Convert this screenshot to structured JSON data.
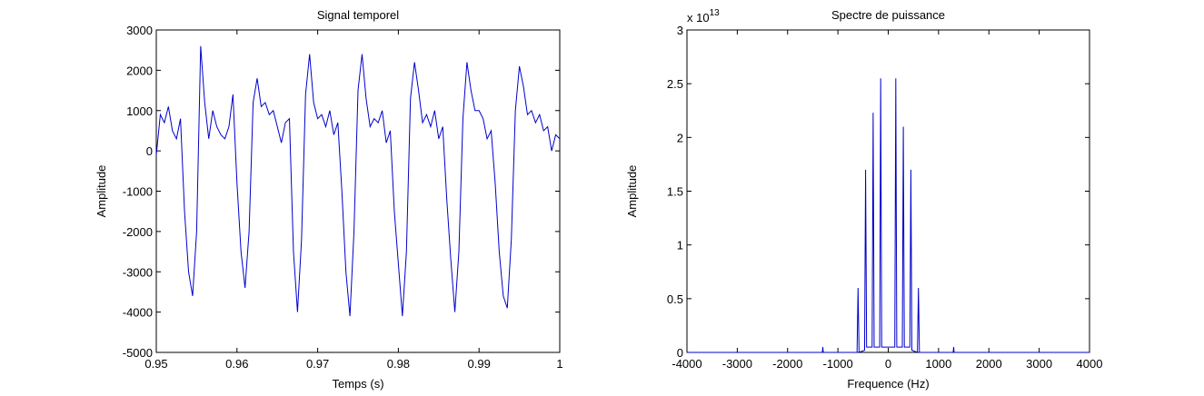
{
  "chart_data": [
    {
      "type": "line",
      "title": "Signal temporel",
      "x_label": "Temps (s)",
      "y_label": "Amplitude",
      "xlim": [
        0.95,
        1
      ],
      "xticks": [
        0.95,
        0.96,
        0.97,
        0.98,
        0.99,
        1
      ],
      "ylim": [
        -5000,
        3000
      ],
      "yticks": [
        -5000,
        -4000,
        -3000,
        -2000,
        -1000,
        0,
        1000,
        2000,
        3000
      ],
      "color": "#0000cc",
      "x": [
        0.95,
        0.9505,
        0.951,
        0.9515,
        0.952,
        0.9525,
        0.953,
        0.9535,
        0.954,
        0.9545,
        0.955,
        0.9555,
        0.956,
        0.9565,
        0.957,
        0.9575,
        0.958,
        0.9585,
        0.959,
        0.9595,
        0.96,
        0.9605,
        0.961,
        0.9615,
        0.962,
        0.9625,
        0.963,
        0.9635,
        0.964,
        0.9645,
        0.965,
        0.9655,
        0.966,
        0.9665,
        0.967,
        0.9675,
        0.968,
        0.9685,
        0.969,
        0.9695,
        0.97,
        0.9705,
        0.971,
        0.9715,
        0.972,
        0.9725,
        0.973,
        0.9735,
        0.974,
        0.9745,
        0.975,
        0.9755,
        0.976,
        0.9765,
        0.977,
        0.9775,
        0.978,
        0.9785,
        0.979,
        0.9795,
        0.98,
        0.9805,
        0.981,
        0.9815,
        0.982,
        0.9825,
        0.983,
        0.9835,
        0.984,
        0.9845,
        0.985,
        0.9855,
        0.986,
        0.9865,
        0.987,
        0.9875,
        0.988,
        0.9885,
        0.989,
        0.9895,
        0.99,
        0.9905,
        0.991,
        0.9915,
        0.992,
        0.9925,
        0.993,
        0.9935,
        0.994,
        0.9945,
        0.995,
        0.9955,
        0.996,
        0.9965,
        0.997,
        0.9975,
        0.998,
        0.9985,
        0.999,
        0.9995,
        1
      ],
      "values": [
        -100,
        900,
        700,
        1100,
        500,
        300,
        800,
        -1500,
        -3000,
        -3600,
        -2000,
        2600,
        1200,
        300,
        1000,
        600,
        400,
        300,
        600,
        1400,
        -800,
        -2500,
        -3400,
        -2000,
        1200,
        1800,
        1100,
        1200,
        900,
        1000,
        600,
        200,
        700,
        800,
        -2500,
        -4000,
        -2200,
        1400,
        2400,
        1200,
        800,
        900,
        600,
        1000,
        400,
        700,
        -1000,
        -3000,
        -4100,
        -2000,
        1500,
        2400,
        1300,
        600,
        800,
        700,
        1000,
        200,
        500,
        -1500,
        -2800,
        -4100,
        -2500,
        1300,
        2200,
        1500,
        700,
        900,
        600,
        1000,
        300,
        600,
        -1200,
        -2700,
        -4000,
        -2500,
        800,
        2200,
        1500,
        1000,
        1000,
        800,
        300,
        500,
        -800,
        -2500,
        -3600,
        -3900,
        -2200,
        1000,
        2100,
        1600,
        900,
        1000,
        700,
        900,
        500,
        600,
        0,
        400,
        300
      ]
    },
    {
      "type": "line",
      "title": "Spectre de puissance",
      "x_label": "Frequence (Hz)",
      "y_label": "Amplitude",
      "y_multiplier": {
        "base": "x 10",
        "exponent": "13"
      },
      "xlim": [
        -4000,
        4000
      ],
      "xticks": [
        -4000,
        -3000,
        -2000,
        -1000,
        0,
        1000,
        2000,
        3000,
        4000
      ],
      "ylim": [
        0,
        3
      ],
      "yticks": [
        0,
        0.5,
        1,
        1.5,
        2,
        2.5,
        3
      ],
      "color": "#0000cc",
      "x": [
        -4000,
        -1310,
        -1300,
        -1290,
        -620,
        -600,
        -580,
        -470,
        -450,
        -430,
        -320,
        -300,
        -280,
        -170,
        -150,
        -130,
        130,
        150,
        170,
        280,
        300,
        320,
        430,
        450,
        470,
        580,
        600,
        620,
        1290,
        1300,
        1310,
        4000
      ],
      "values": [
        0,
        0,
        0.05,
        0,
        0,
        0.6,
        0,
        0.02,
        1.7,
        0.05,
        0.05,
        2.23,
        0.05,
        0.05,
        2.55,
        0.05,
        0.05,
        2.55,
        0.05,
        0.05,
        2.1,
        0.05,
        0.05,
        1.7,
        0.02,
        0,
        0.6,
        0,
        0,
        0.05,
        0,
        0
      ]
    }
  ]
}
